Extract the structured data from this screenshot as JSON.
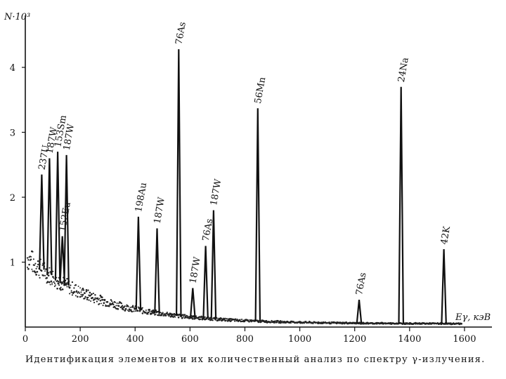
{
  "chart_data": {
    "type": "line",
    "caption": "Идентификация элементов и их количественный анализ по спектру γ-излучения.",
    "ylabel": "N·10³",
    "xlabel": "Eγ, кэВ",
    "xlim": [
      0,
      1700
    ],
    "ylim": [
      0,
      4.8
    ],
    "x_ticks": [
      0,
      200,
      400,
      600,
      800,
      1000,
      1200,
      1400,
      1600
    ],
    "x_tick_labels": [
      "0",
      "200",
      "400",
      "600",
      "800",
      "1000",
      "1200",
      "1400",
      "1600"
    ],
    "y_ticks": [
      1,
      2,
      3,
      4
    ],
    "y_tick_labels": [
      "1",
      "2",
      "3",
      "4"
    ],
    "grid": false,
    "background_start": 1.1,
    "background_end": 0.05,
    "peaks": [
      {
        "label": "237U",
        "x": 60,
        "y": 2.35
      },
      {
        "label": "187W",
        "x": 88,
        "y": 2.6
      },
      {
        "label": "153Sm",
        "x": 118,
        "y": 2.7
      },
      {
        "label": "152Eu",
        "x": 135,
        "y": 1.4
      },
      {
        "label": "187W",
        "x": 150,
        "y": 2.65
      },
      {
        "label": "198Au",
        "x": 412,
        "y": 1.7
      },
      {
        "label": "187W",
        "x": 480,
        "y": 1.52
      },
      {
        "label": "76As",
        "x": 559,
        "y": 4.28
      },
      {
        "label": "187W",
        "x": 610,
        "y": 0.6
      },
      {
        "label": "76As",
        "x": 657,
        "y": 1.25
      },
      {
        "label": "187W",
        "x": 686,
        "y": 1.8
      },
      {
        "label": "56Mn",
        "x": 847,
        "y": 3.37
      },
      {
        "label": "76As",
        "x": 1216,
        "y": 0.42
      },
      {
        "label": "24Na",
        "x": 1369,
        "y": 3.7
      },
      {
        "label": "42K",
        "x": 1525,
        "y": 1.2
      }
    ]
  }
}
